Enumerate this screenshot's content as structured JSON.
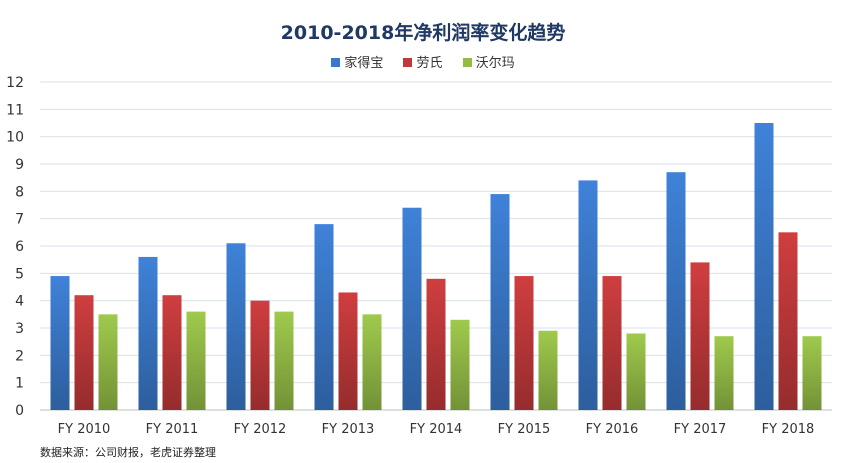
{
  "chart_data": {
    "type": "bar",
    "title": "2010-2018年净利润率变化趋势",
    "xlabel": "",
    "ylabel": "",
    "categories": [
      "FY 2010",
      "FY 2011",
      "FY 2012",
      "FY 2013",
      "FY 2014",
      "FY 2015",
      "FY 2016",
      "FY 2017",
      "FY 2018"
    ],
    "ylim": [
      0,
      12
    ],
    "yticks": [
      0,
      1,
      2,
      3,
      4,
      5,
      6,
      7,
      8,
      9,
      10,
      11,
      12
    ],
    "grid": true,
    "legend_position": "top",
    "series": [
      {
        "name": "家得宝",
        "color": "#3a78c9",
        "values": [
          4.9,
          5.6,
          6.1,
          6.8,
          7.4,
          7.9,
          8.4,
          8.7,
          10.5
        ]
      },
      {
        "name": "劳氏",
        "color": "#c0393a",
        "values": [
          4.2,
          4.2,
          4.0,
          4.3,
          4.8,
          4.9,
          4.9,
          5.4,
          6.5
        ]
      },
      {
        "name": "沃尔玛",
        "color": "#93bb46",
        "values": [
          3.5,
          3.6,
          3.6,
          3.5,
          3.3,
          2.9,
          2.8,
          2.7,
          2.7
        ]
      }
    ]
  },
  "source_note": "数据来源：公司财报，老虎证券整理"
}
